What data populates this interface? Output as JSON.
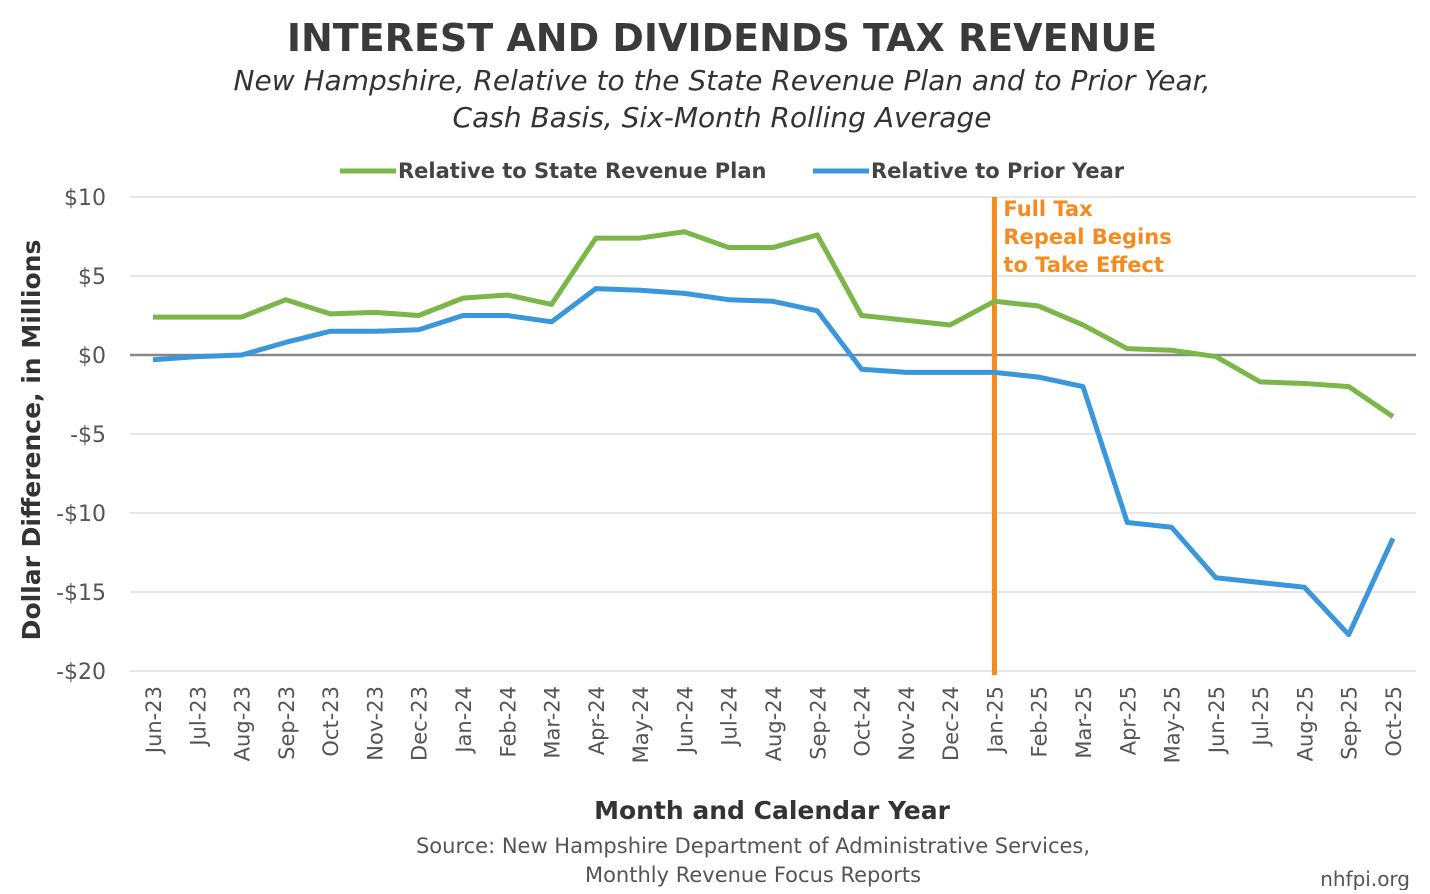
{
  "chart_data": {
    "type": "line",
    "title": "INTEREST AND DIVIDENDS TAX REVENUE",
    "subtitle": [
      "New Hampshire, Relative to the State Revenue Plan and to Prior Year,",
      "Cash Basis, Six-Month Rolling Average"
    ],
    "y_label": "Dollar Difference, in Millions",
    "x_label": "Month and Calendar Year",
    "source": [
      "Source: New Hampshire Department of Administrative Services,",
      "Monthly Revenue Focus Reports"
    ],
    "credit": "nhfpi.org",
    "categories": [
      "Jun-23",
      "Jul-23",
      "Aug-23",
      "Sep-23",
      "Oct-23",
      "Nov-23",
      "Dec-23",
      "Jan-24",
      "Feb-24",
      "Mar-24",
      "Apr-24",
      "May-24",
      "Jun-24",
      "Jul-24",
      "Aug-24",
      "Sep-24",
      "Oct-24",
      "Nov-24",
      "Dec-24",
      "Jan-25",
      "Feb-25",
      "Mar-25",
      "Apr-25",
      "May-25",
      "Jun-25",
      "Jul-25",
      "Aug-25",
      "Sep-25",
      "Oct-25"
    ],
    "series": [
      {
        "name": "Relative to State Revenue Plan",
        "color": "#7ab648",
        "values": [
          2.4,
          2.4,
          2.4,
          3.5,
          2.6,
          2.7,
          2.5,
          3.6,
          3.8,
          3.2,
          7.4,
          7.4,
          7.8,
          6.8,
          6.8,
          7.6,
          2.5,
          2.2,
          1.9,
          3.4,
          3.1,
          1.9,
          0.4,
          0.3,
          -0.1,
          -1.7,
          -1.8,
          -2.0,
          -3.9
        ]
      },
      {
        "name": "Relative to Prior Year",
        "color": "#3a97db",
        "values": [
          -0.3,
          -0.1,
          0,
          0.8,
          1.5,
          1.5,
          1.6,
          2.5,
          2.5,
          2.1,
          4.2,
          4.1,
          3.9,
          3.5,
          3.4,
          2.8,
          -0.9,
          -1.1,
          -1.1,
          -1.1,
          -1.4,
          -2.0,
          -10.6,
          -10.9,
          -14.1,
          -14.4,
          -14.7,
          -17.7,
          -11.6
        ]
      }
    ],
    "ylim": [
      -20,
      10
    ],
    "yticks": [
      {
        "value": -20,
        "label": "-$20"
      },
      {
        "value": -15,
        "label": "-$15"
      },
      {
        "value": -10,
        "label": "-$10"
      },
      {
        "value": -5,
        "label": "-$5"
      },
      {
        "value": 0,
        "label": "$0"
      },
      {
        "value": 5,
        "label": "$5"
      },
      {
        "value": 10,
        "label": "$10"
      }
    ],
    "grid": true,
    "legend": "top",
    "annotation": {
      "at": "Jan-25",
      "color": "#f58b1f",
      "text": [
        "Full Tax",
        "Repeal Begins",
        "to Take Effect"
      ]
    }
  }
}
